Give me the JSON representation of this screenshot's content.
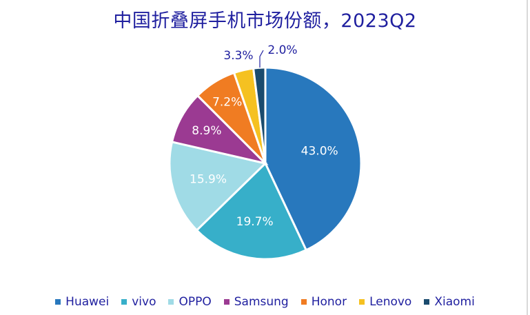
{
  "chart_data": {
    "type": "pie",
    "title": "中国折叠屏手机市场份额，2023Q2",
    "categories": [
      "Huawei",
      "vivo",
      "OPPO",
      "Samsung",
      "Honor",
      "Lenovo",
      "Xiaomi"
    ],
    "values": [
      43.0,
      19.7,
      15.9,
      8.9,
      7.2,
      3.3,
      2.0
    ],
    "labels": [
      "43.0%",
      "19.7%",
      "15.9%",
      "8.9%",
      "7.2%",
      "3.3%",
      "2.0%"
    ],
    "colors": [
      "#2878bd",
      "#37afc9",
      "#a0dbe6",
      "#9b3a92",
      "#f07c22",
      "#f5c121",
      "#1a4b6e"
    ],
    "legend_position": "bottom"
  }
}
